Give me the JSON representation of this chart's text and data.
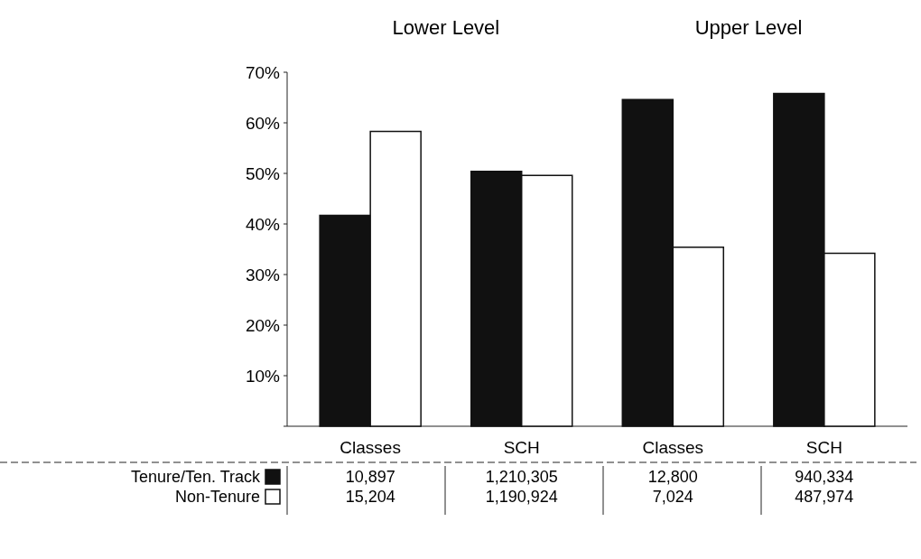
{
  "chart_data": {
    "type": "bar",
    "categories": [
      "Classes",
      "SCH",
      "Classes",
      "SCH"
    ],
    "series": [
      {
        "name": "Tenure/Ten. Track",
        "color": "#111111",
        "values": [
          41.7,
          50.4,
          64.6,
          65.8
        ]
      },
      {
        "name": "Non-Tenure",
        "color": "#ffffff",
        "values": [
          58.3,
          49.6,
          35.4,
          34.2
        ]
      }
    ],
    "annotations": [
      "Lower Level",
      "Upper Level",
      "10,897",
      "1,210,305",
      "12,800",
      "940,334",
      "15,204",
      "1,190,924",
      "7,024",
      "487,974"
    ],
    "ylim": [
      0,
      70
    ],
    "yticks": [
      {
        "value": 0,
        "label": null
      },
      {
        "value": 10,
        "label": "10%"
      },
      {
        "value": 20,
        "label": "20%"
      },
      {
        "value": 30,
        "label": "30%"
      },
      {
        "value": 40,
        "label": "40%"
      },
      {
        "value": 50,
        "label": "50%"
      },
      {
        "value": 60,
        "label": "60%"
      },
      {
        "value": 70,
        "label": "70%"
      }
    ],
    "grid": false,
    "legend": "bottom left"
  }
}
